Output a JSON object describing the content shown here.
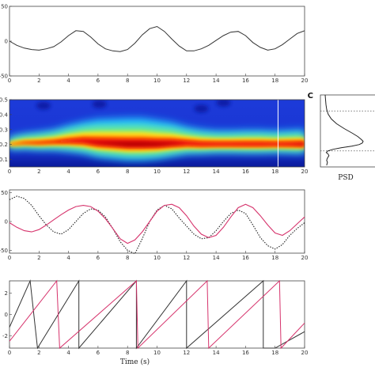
{
  "chart_data": [
    {
      "type": "line",
      "xlim": [
        0,
        20
      ],
      "ylim": [
        -50,
        50
      ],
      "x_ticks": [
        "0",
        "2",
        "4",
        "6",
        "8",
        "10",
        "12",
        "14",
        "16",
        "18",
        "20"
      ],
      "y_ticks": [
        "50",
        "0",
        "-50"
      ],
      "grid": false,
      "series": [
        {
          "style": "solid",
          "color": "#333333",
          "x": [
            0,
            0.5,
            1,
            1.5,
            2,
            2.5,
            3,
            3.5,
            4,
            4.5,
            5,
            5.5,
            6,
            6.5,
            7,
            7.5,
            8,
            8.5,
            9,
            9.5,
            10,
            10.5,
            11,
            11.5,
            12,
            12.5,
            13,
            13.5,
            14,
            14.5,
            15,
            15.5,
            16,
            16.5,
            17,
            17.5,
            18,
            18.5,
            19,
            19.5,
            20
          ],
          "y": [
            0,
            -6,
            -10,
            -12,
            -13,
            -11,
            -8,
            -1,
            8,
            15,
            14,
            6,
            -4,
            -11,
            -14,
            -15,
            -12,
            -3,
            9,
            18,
            21,
            14,
            3,
            -7,
            -14,
            -14,
            -11,
            -6,
            1,
            8,
            13,
            14,
            8,
            -2,
            -9,
            -13,
            -11,
            -5,
            3,
            11,
            15
          ]
        }
      ]
    },
    {
      "type": "heatmap",
      "xlim": [
        0,
        20
      ],
      "ylim": [
        0.05,
        0.5
      ],
      "x_ticks": [
        "0",
        "2",
        "4",
        "6",
        "8",
        "10",
        "12",
        "14",
        "16",
        "18",
        "20"
      ],
      "y_ticks": [
        "0.5",
        "0.4",
        "0.3",
        "0.2",
        "0.1"
      ],
      "colormap": [
        "#00008f",
        "#0000ff",
        "#00ffff",
        "#ffff00",
        "#ff0000",
        "#800000"
      ],
      "ridge": {
        "x": [
          0,
          1,
          2,
          3,
          4,
          5,
          6,
          7,
          8,
          9,
          10,
          11,
          12,
          13,
          14,
          15,
          16,
          17,
          18,
          19,
          20
        ],
        "freq": [
          0.2,
          0.21,
          0.21,
          0.215,
          0.22,
          0.22,
          0.21,
          0.205,
          0.2,
          0.2,
          0.2,
          0.205,
          0.205,
          0.2,
          0.2,
          0.2,
          0.2,
          0.2,
          0.2,
          0.2,
          0.2
        ],
        "power": [
          0.45,
          0.55,
          0.6,
          0.62,
          0.7,
          0.8,
          0.9,
          0.95,
          1.0,
          1.0,
          0.98,
          0.92,
          0.85,
          0.82,
          0.82,
          0.82,
          0.85,
          0.85,
          0.8,
          0.85,
          0.9
        ],
        "width": [
          0.05,
          0.05,
          0.055,
          0.06,
          0.07,
          0.075,
          0.08,
          0.08,
          0.08,
          0.08,
          0.075,
          0.07,
          0.06,
          0.055,
          0.05,
          0.05,
          0.05,
          0.05,
          0.05,
          0.05,
          0.05
        ]
      },
      "marker_x": 18.2
    },
    {
      "type": "line",
      "panel_label": "C",
      "xlabel": "PSD",
      "orientation": "vertical",
      "ylim": [
        0.05,
        0.5
      ],
      "dotted_levels": [
        0.4,
        0.15
      ],
      "series": [
        {
          "style": "solid",
          "color": "#222222",
          "freq": [
            0.5,
            0.47,
            0.44,
            0.41,
            0.38,
            0.35,
            0.32,
            0.29,
            0.26,
            0.24,
            0.22,
            0.21,
            0.2,
            0.19,
            0.18,
            0.17,
            0.16,
            0.15,
            0.14,
            0.13,
            0.12,
            0.11,
            0.1,
            0.09,
            0.08,
            0.07,
            0.06
          ],
          "psd": [
            0.0,
            0.01,
            0.02,
            0.04,
            0.08,
            0.16,
            0.3,
            0.5,
            0.72,
            0.86,
            0.96,
            1.0,
            0.98,
            0.9,
            0.7,
            0.42,
            0.2,
            0.07,
            0.03,
            0.08,
            0.1,
            0.07,
            0.05,
            0.04,
            0.06,
            0.05,
            0.04
          ]
        }
      ]
    },
    {
      "type": "line",
      "xlim": [
        0,
        20
      ],
      "ylim": [
        -55,
        55
      ],
      "x_ticks": [
        "0",
        "2",
        "4",
        "6",
        "8",
        "10",
        "12",
        "14",
        "16",
        "18",
        "20"
      ],
      "y_ticks": [
        "50",
        "0",
        "-50"
      ],
      "grid": false,
      "series": [
        {
          "style": "solid",
          "color": "#d6336c",
          "x": [
            0,
            0.5,
            1,
            1.5,
            2,
            2.5,
            3,
            3.5,
            4,
            4.5,
            5,
            5.5,
            6,
            6.5,
            7,
            7.5,
            8,
            8.5,
            9,
            9.5,
            10,
            10.5,
            11,
            11.5,
            12,
            12.5,
            13,
            13.5,
            14,
            14.5,
            15,
            15.5,
            16,
            16.5,
            17,
            17.5,
            18,
            18.5,
            19,
            19.5,
            20
          ],
          "y": [
            -2,
            -10,
            -16,
            -18,
            -14,
            -6,
            3,
            12,
            20,
            26,
            28,
            26,
            18,
            5,
            -12,
            -30,
            -38,
            -32,
            -18,
            0,
            18,
            28,
            30,
            24,
            10,
            -8,
            -22,
            -28,
            -24,
            -10,
            8,
            24,
            30,
            24,
            10,
            -6,
            -20,
            -24,
            -16,
            -4,
            8
          ]
        },
        {
          "style": "dotted",
          "color": "#222222",
          "x": [
            0,
            0.5,
            1,
            1.5,
            2,
            2.5,
            3,
            3.5,
            4,
            4.5,
            5,
            5.5,
            6,
            6.5,
            7,
            7.5,
            8,
            8.5,
            9,
            9.5,
            10,
            10.5,
            11,
            11.5,
            12,
            12.5,
            13,
            13.5,
            14,
            14.5,
            15,
            15.5,
            16,
            16.5,
            17,
            17.5,
            18,
            18.5,
            19,
            19.5,
            20
          ],
          "y": [
            38,
            44,
            40,
            28,
            10,
            -6,
            -18,
            -22,
            -14,
            0,
            14,
            22,
            20,
            8,
            -12,
            -35,
            -50,
            -56,
            -30,
            0,
            20,
            28,
            22,
            6,
            -8,
            -22,
            -30,
            -28,
            -16,
            0,
            14,
            20,
            14,
            -6,
            -28,
            -42,
            -48,
            -40,
            -24,
            -12,
            -2
          ]
        }
      ]
    },
    {
      "type": "line",
      "xlabel": "Time (s)",
      "xlim": [
        0,
        20
      ],
      "ylim": [
        -3.14,
        3.14
      ],
      "x_ticks": [
        "0",
        "2",
        "4",
        "6",
        "8",
        "10",
        "12",
        "14",
        "16",
        "18",
        "20"
      ],
      "y_ticks": [
        "2",
        "0",
        "-2"
      ],
      "grid": false,
      "series": [
        {
          "style": "solid",
          "color": "#333333",
          "wrap": "phase",
          "x": [
            0,
            1.4,
            1.4,
            1.9,
            1.9,
            4.7,
            4.7,
            8.6,
            8.6,
            12.0,
            12.0,
            17.2,
            17.2,
            18.0,
            18.0,
            20.0
          ],
          "y": [
            -1.2,
            3.14,
            3.14,
            -3.14,
            -3.14,
            3.14,
            -3.14,
            3.14,
            -3.14,
            3.14,
            -3.14,
            3.14,
            -3.14,
            -3.14,
            -3.14,
            -1.6
          ]
        },
        {
          "style": "solid",
          "color": "#d6336c",
          "wrap": "phase",
          "x": [
            0,
            3.2,
            3.4,
            8.6,
            8.7,
            13.4,
            13.5,
            18.3,
            18.4,
            20.0
          ],
          "y": [
            -2.5,
            3.14,
            -3.14,
            3.14,
            -3.14,
            3.14,
            -3.14,
            3.14,
            -3.14,
            -0.8
          ]
        }
      ]
    }
  ]
}
